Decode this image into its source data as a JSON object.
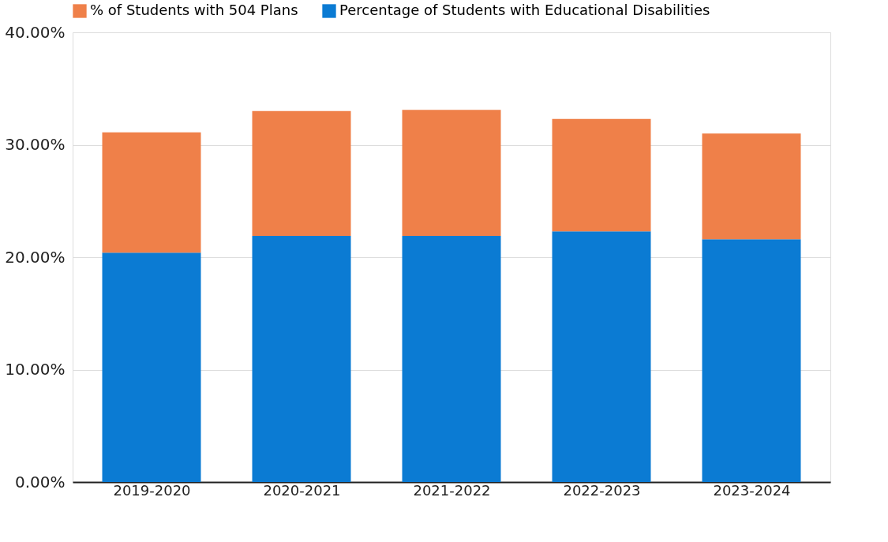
{
  "chart_data": {
    "type": "bar",
    "stacked": true,
    "categories": [
      "2019-2020",
      "2020-2021",
      "2021-2022",
      "2022-2023",
      "2023-2024"
    ],
    "series": [
      {
        "name": "Percentage of Students with Educational Disabilities",
        "color": "#0b7bd3",
        "values": [
          20.4,
          21.9,
          21.9,
          22.3,
          21.6
        ]
      },
      {
        "name": "% of Students with 504 Plans",
        "color": "#ef8049",
        "values": [
          10.7,
          11.1,
          11.2,
          10.0,
          9.4
        ]
      }
    ],
    "ylim": [
      0,
      40
    ],
    "yticks": [
      {
        "value": 0,
        "label": "0.00%"
      },
      {
        "value": 10,
        "label": "10.00%"
      },
      {
        "value": 20,
        "label": "20.00%"
      },
      {
        "value": 30,
        "label": "30.00%"
      },
      {
        "value": 40,
        "label": "40.00%"
      }
    ],
    "grid": "y",
    "legend": "top left"
  }
}
